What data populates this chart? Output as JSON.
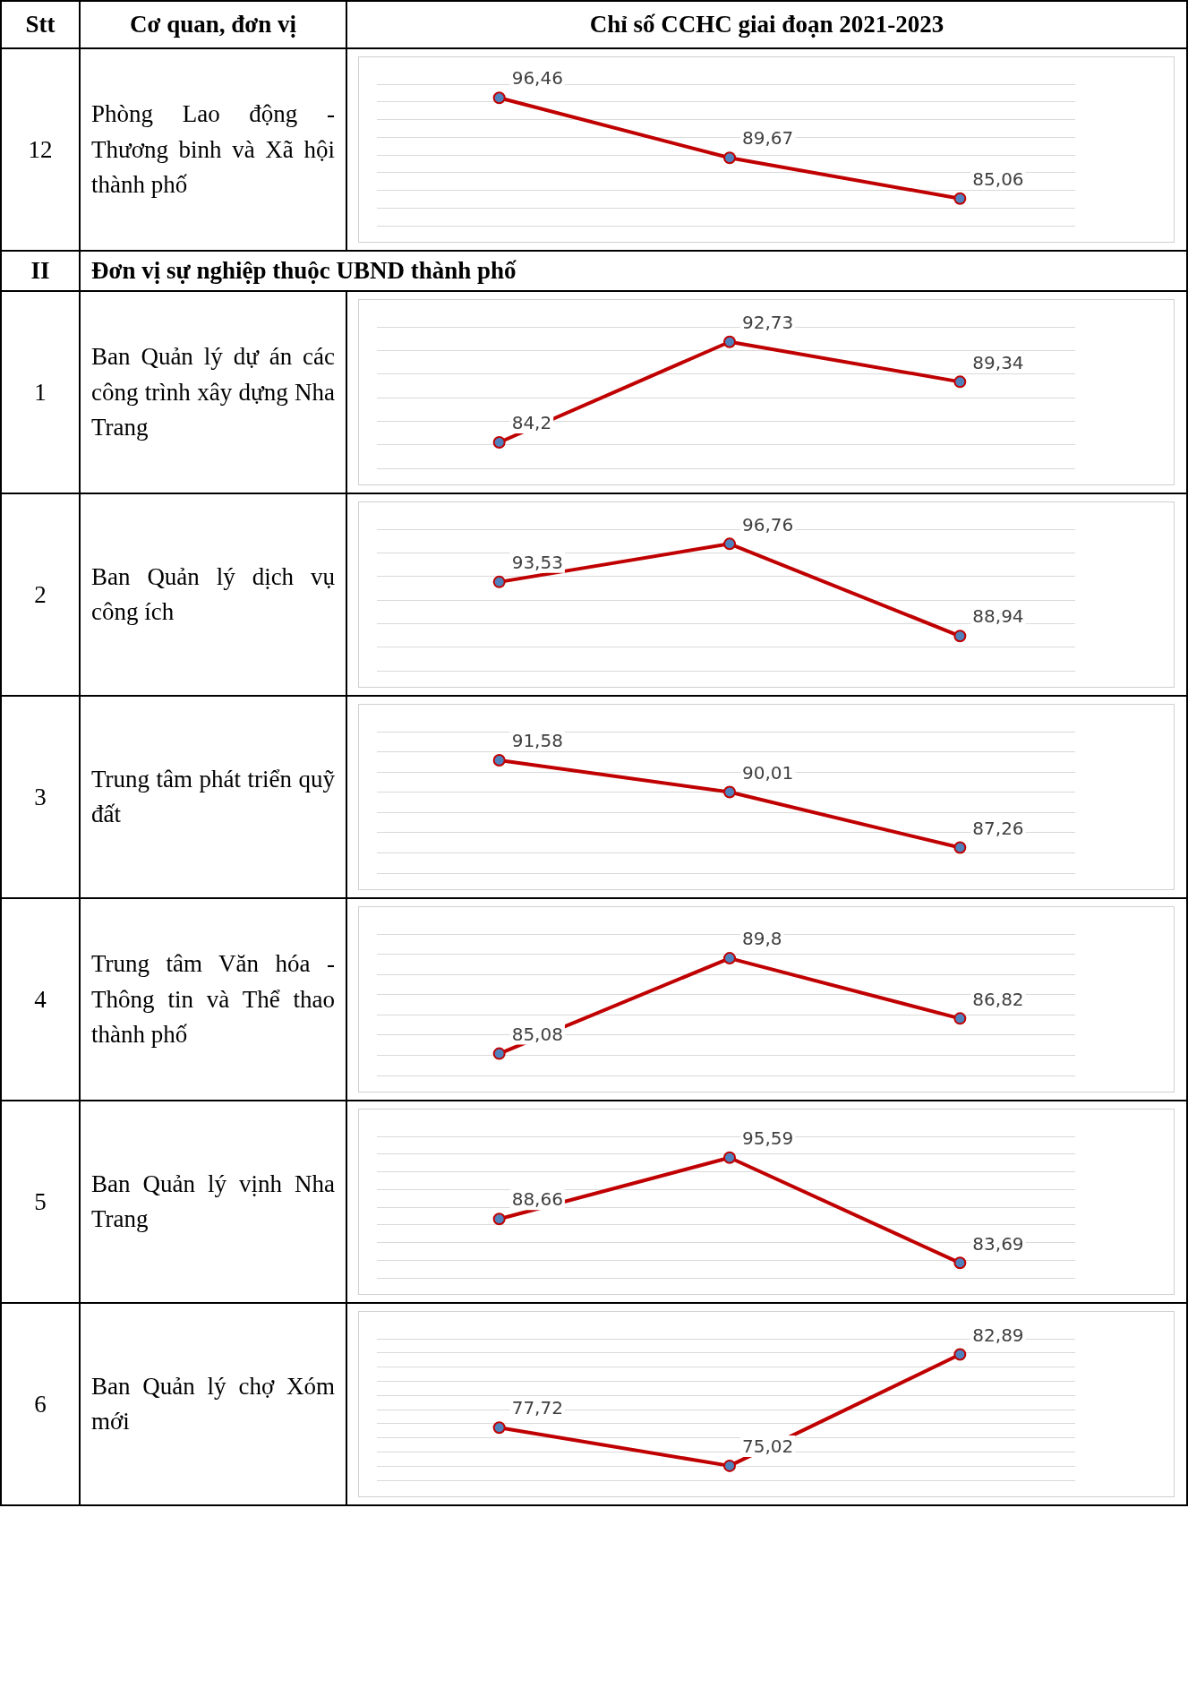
{
  "chart_data": [
    {
      "type": "other",
      "annotations": [
        "Stt",
        "Cơ quan, đơn vị",
        "Chỉ số CCHC giai đoạn 2021-2023"
      ]
    },
    {
      "type": "line",
      "title": "Phòng Lao động - Thương binh và Xã hội thành phố",
      "annotations": [
        "12"
      ],
      "categories": [
        null,
        null,
        null
      ],
      "series": [
        {
          "color": "#c00000",
          "values": [
            96.46,
            89.67,
            85.06
          ],
          "value_labels": [
            "96,46",
            "89,67",
            "85,06"
          ]
        }
      ],
      "marker": "circle",
      "grid": "y",
      "tick_labels": false
    },
    {
      "type": "other",
      "annotations": [
        "II",
        "Đơn vị sự nghiệp thuộc UBND thành phố"
      ]
    },
    {
      "type": "line",
      "title": "Ban Quản lý dự án các công trình xây dựng Nha Trang",
      "annotations": [
        "1"
      ],
      "categories": [
        null,
        null,
        null
      ],
      "series": [
        {
          "color": "#c00000",
          "values": [
            84.2,
            92.73,
            89.34
          ],
          "value_labels": [
            "84,2",
            "92,73",
            "89,34"
          ]
        }
      ],
      "marker": "circle",
      "grid": "y",
      "tick_labels": false
    },
    {
      "type": "line",
      "title": "Ban Quản lý dịch vụ công ích",
      "annotations": [
        "2"
      ],
      "categories": [
        null,
        null,
        null
      ],
      "series": [
        {
          "color": "#c00000",
          "values": [
            93.53,
            96.76,
            88.94
          ],
          "value_labels": [
            "93,53",
            "96,76",
            "88,94"
          ]
        }
      ],
      "marker": "circle",
      "grid": "y",
      "tick_labels": false
    },
    {
      "type": "line",
      "title": "Trung tâm phát triển quỹ đất",
      "annotations": [
        "3"
      ],
      "categories": [
        null,
        null,
        null
      ],
      "series": [
        {
          "color": "#c00000",
          "values": [
            91.58,
            90.01,
            87.26
          ],
          "value_labels": [
            "91,58",
            "90,01",
            "87,26"
          ]
        }
      ],
      "marker": "circle",
      "grid": "y",
      "tick_labels": false
    },
    {
      "type": "line",
      "title": "Trung tâm Văn hóa - Thông tin và Thể thao thành phố",
      "annotations": [
        "4"
      ],
      "categories": [
        null,
        null,
        null
      ],
      "series": [
        {
          "color": "#c00000",
          "values": [
            85.08,
            89.8,
            86.82
          ],
          "value_labels": [
            "85,08",
            "89,8",
            "86,82"
          ]
        }
      ],
      "marker": "circle",
      "grid": "y",
      "tick_labels": false
    },
    {
      "type": "line",
      "title": "Ban Quản lý vịnh Nha Trang",
      "annotations": [
        "5"
      ],
      "categories": [
        null,
        null,
        null
      ],
      "series": [
        {
          "color": "#c00000",
          "values": [
            88.66,
            95.59,
            83.69
          ],
          "value_labels": [
            "88,66",
            "95,59",
            "83,69"
          ]
        }
      ],
      "marker": "circle",
      "grid": "y",
      "tick_labels": false
    },
    {
      "type": "line",
      "title": "Ban Quản lý chợ Xóm mới",
      "annotations": [
        "6"
      ],
      "categories": [
        null,
        null,
        null
      ],
      "series": [
        {
          "color": "#c00000",
          "values": [
            77.72,
            75.02,
            82.89
          ],
          "value_labels": [
            "77,72",
            "75,02",
            "82,89"
          ]
        }
      ],
      "marker": "circle",
      "grid": "y",
      "tick_labels": false
    }
  ]
}
